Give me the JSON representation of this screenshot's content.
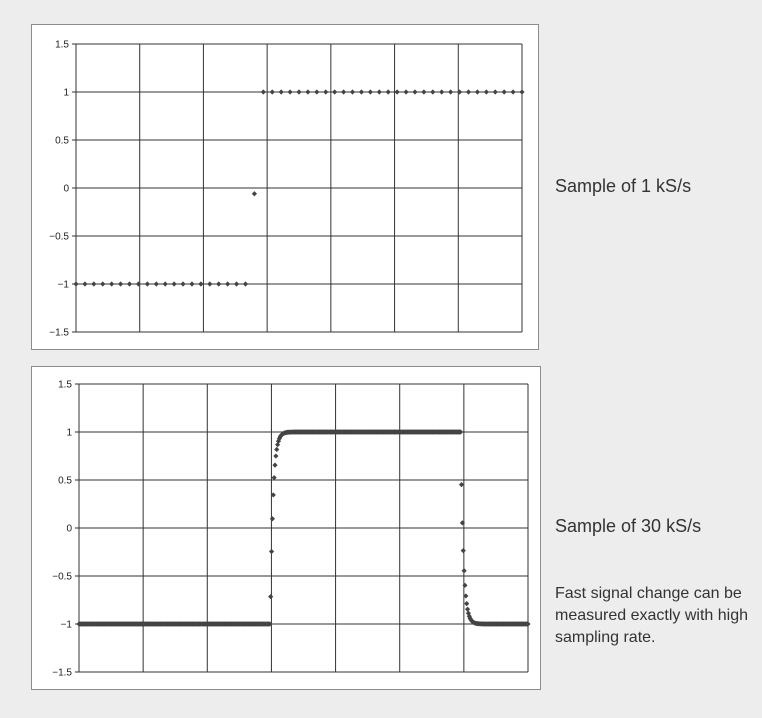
{
  "chart_data": [
    {
      "type": "scatter",
      "title": "",
      "xlabel": "",
      "ylabel": "",
      "ylim": [
        -1.5,
        1.5
      ],
      "yticks": [
        "1.5",
        "1",
        "0.5",
        "0",
        "−0.5",
        "−1",
        "−1.5"
      ],
      "x_divisions": 7,
      "grid": true,
      "marker_color": "#444444",
      "sample_rate_label": "Sample of 1 kS/s",
      "series": [
        {
          "x": [
            0,
            1,
            2,
            3,
            4,
            5,
            6,
            7,
            8,
            9,
            10,
            11,
            12,
            13,
            14,
            15,
            16,
            17,
            18,
            19,
            20,
            21,
            22,
            23,
            24,
            25,
            26,
            27,
            28,
            29,
            30,
            31,
            32,
            33,
            34,
            35,
            36,
            37,
            38,
            39,
            40,
            41,
            42,
            43,
            44,
            45,
            46,
            47,
            48,
            49,
            50
          ],
          "values": [
            -1,
            -1,
            -1,
            -1,
            -1,
            -1,
            -1,
            -1,
            -1,
            -1,
            -1,
            -1,
            -1,
            -1,
            -1,
            -1,
            -1,
            -1,
            -1,
            -1,
            -0.06,
            1,
            1,
            1,
            1,
            1,
            1,
            1,
            1,
            1,
            1,
            1,
            1,
            1,
            1,
            1,
            1,
            1,
            1,
            1,
            1,
            1,
            1,
            1,
            1,
            1,
            1,
            1,
            1,
            1,
            1
          ]
        }
      ]
    },
    {
      "type": "scatter",
      "title": "",
      "xlabel": "",
      "ylabel": "",
      "ylim": [
        -1.5,
        1.5
      ],
      "yticks": [
        "1.5",
        "1",
        "0.5",
        "0",
        "−0.5",
        "−1",
        "−1.5"
      ],
      "x_divisions": 7,
      "grid": true,
      "marker_color": "#444444",
      "sample_rate_label": "Sample of 30 kS/s",
      "note": "Fast signal change can be measured exactly with high sampling rate."
    }
  ],
  "labels": {
    "top": "Sample of 1 kS/s",
    "bottom": "Sample of 30 kS/s",
    "note": "Fast signal change can be measured exactly with high sampling rate."
  }
}
